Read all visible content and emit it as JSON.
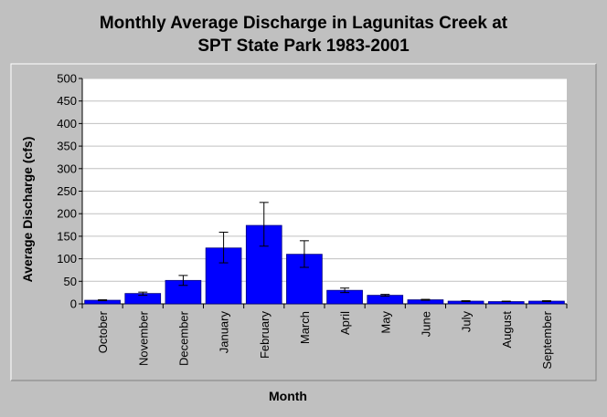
{
  "colors": {
    "background": "#c0c0c0",
    "plot_area": "#ffffff",
    "bar": "#0000ff",
    "bar_edge": "#000080",
    "gridline": "#c0c0c0",
    "error_bar": "#000000"
  },
  "chart_data": {
    "type": "bar",
    "title_lines": [
      "Monthly Average Discharge in Lagunitas Creek at",
      "SPT State Park 1983-2001"
    ],
    "xlabel": "Month",
    "ylabel": "Average Discharge (cfs)",
    "ylim": [
      0,
      500
    ],
    "yticks": [
      0,
      50,
      100,
      150,
      200,
      250,
      300,
      350,
      400,
      450,
      500
    ],
    "grid": true,
    "legend": "none",
    "categories": [
      "October",
      "November",
      "December",
      "January",
      "February",
      "March",
      "April",
      "May",
      "June",
      "July",
      "August",
      "September"
    ],
    "values": [
      8,
      23,
      52,
      124,
      174,
      110,
      30,
      19,
      9,
      6,
      5,
      6
    ],
    "error_low": [
      7,
      19,
      41,
      91,
      128,
      81,
      25,
      17,
      8,
      5,
      5,
      5
    ],
    "error_high": [
      9,
      26,
      63,
      159,
      225,
      140,
      35,
      21,
      10,
      7,
      6,
      7
    ]
  }
}
